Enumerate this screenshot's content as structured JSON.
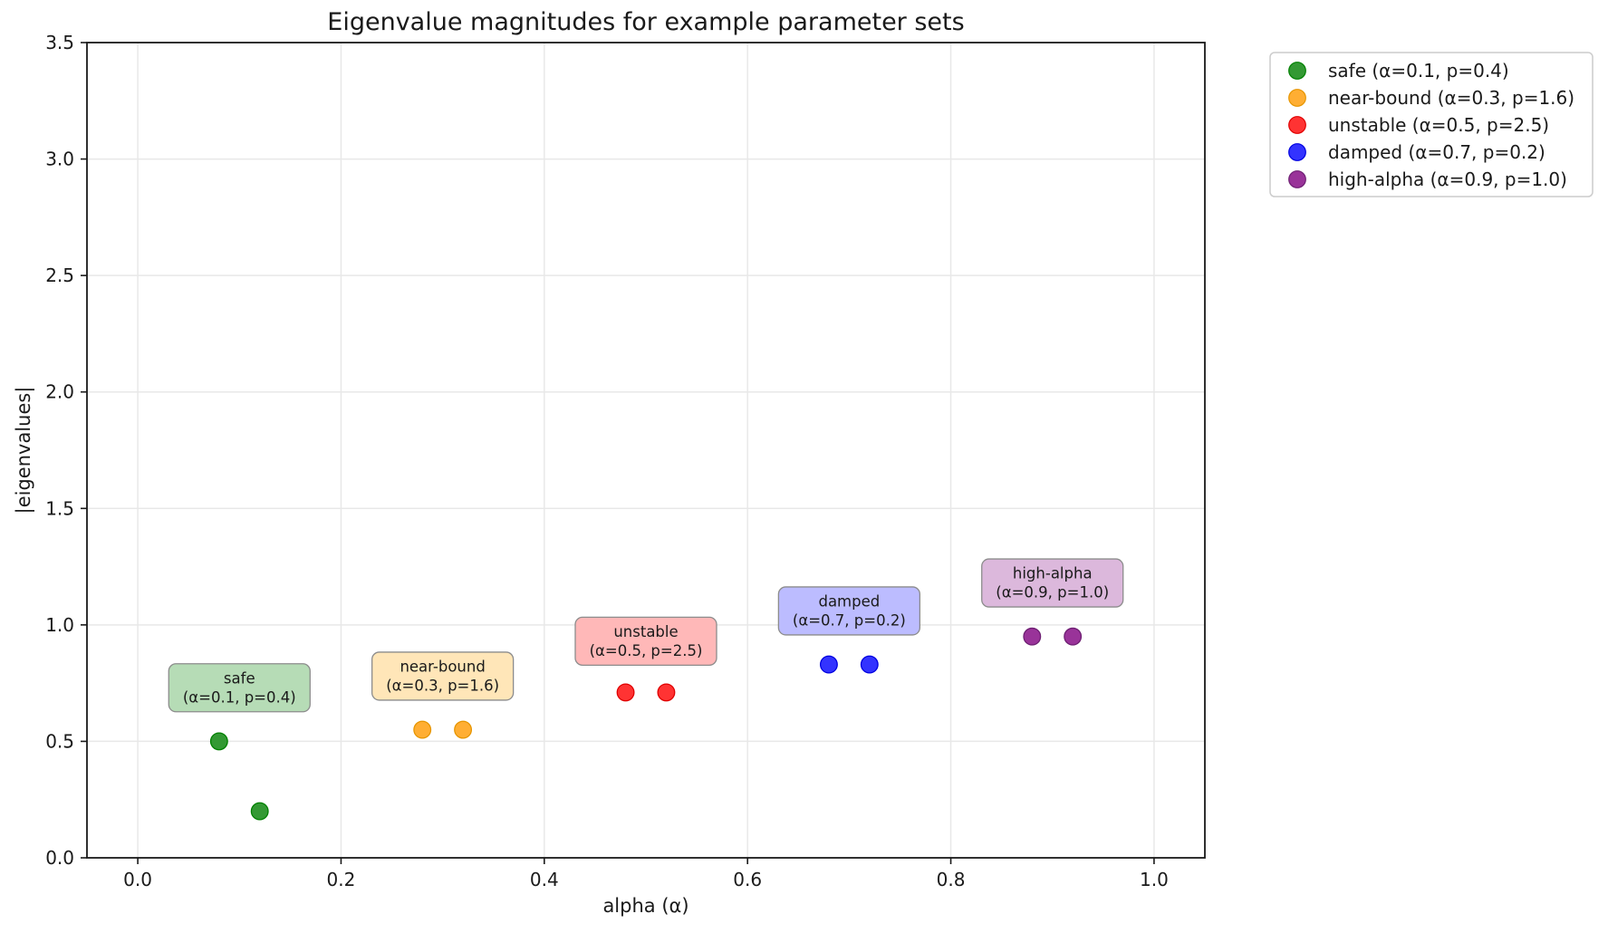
{
  "chart_data": {
    "type": "scatter",
    "title": "Eigenvalue magnitudes for example parameter sets",
    "xlabel": "alpha (α)",
    "ylabel": "|eigenvalues|",
    "xlim": [
      -0.05,
      1.05
    ],
    "ylim": [
      0.0,
      3.5
    ],
    "xticks": [
      "0.0",
      "0.2",
      "0.4",
      "0.6",
      "0.8",
      "1.0"
    ],
    "yticks": [
      "0.0",
      "0.5",
      "1.0",
      "1.5",
      "2.0",
      "2.5",
      "3.0",
      "3.5"
    ],
    "grid": true,
    "grid_color": "#e8e8e8",
    "axis_color": "#1a1a1a",
    "background": "#ffffff",
    "annotation_border": "#8c8c8c",
    "legend_position": "outside upper right",
    "legend_border": "#cccccc",
    "series": [
      {
        "name": "safe",
        "legend_label": "safe (α=0.1, p=0.4)",
        "alpha": 0.1,
        "p": 0.4,
        "marker_fill": "#339933",
        "marker_edge": "#008000",
        "annotation_fill": "#b6dcb6",
        "points": [
          [
            0.08,
            0.5
          ],
          [
            0.12,
            0.2
          ]
        ],
        "annotation": {
          "line1": "safe",
          "line2": "(α=0.1, p=0.4)",
          "x": 0.1,
          "y": 0.73
        }
      },
      {
        "name": "near-bound",
        "legend_label": "near-bound (α=0.3, p=1.6)",
        "alpha": 0.3,
        "p": 1.6,
        "marker_fill": "#ffae33",
        "marker_edge": "#e69500",
        "annotation_fill": "#ffe6b8",
        "points": [
          [
            0.28,
            0.55
          ],
          [
            0.32,
            0.55
          ]
        ],
        "annotation": {
          "line1": "near-bound",
          "line2": "(α=0.3, p=1.6)",
          "x": 0.3,
          "y": 0.78
        }
      },
      {
        "name": "unstable",
        "legend_label": "unstable (α=0.5, p=2.5)",
        "alpha": 0.5,
        "p": 2.5,
        "marker_fill": "#ff3333",
        "marker_edge": "#e00000",
        "annotation_fill": "#ffb8b8",
        "points": [
          [
            0.48,
            0.71
          ],
          [
            0.52,
            0.71
          ]
        ],
        "annotation": {
          "line1": "unstable",
          "line2": "(α=0.5, p=2.5)",
          "x": 0.5,
          "y": 0.93
        }
      },
      {
        "name": "damped",
        "legend_label": "damped (α=0.7, p=0.2)",
        "alpha": 0.7,
        "p": 0.2,
        "marker_fill": "#3333ff",
        "marker_edge": "#0000e0",
        "annotation_fill": "#bcbcff",
        "points": [
          [
            0.68,
            0.83
          ],
          [
            0.72,
            0.83
          ]
        ],
        "annotation": {
          "line1": "damped",
          "line2": "(α=0.7, p=0.2)",
          "x": 0.7,
          "y": 1.06
        }
      },
      {
        "name": "high-alpha",
        "legend_label": "high-alpha (α=0.9, p=1.0)",
        "alpha": 0.9,
        "p": 1.0,
        "marker_fill": "#993399",
        "marker_edge": "#6e1f73",
        "annotation_fill": "#dcb8dc",
        "points": [
          [
            0.88,
            0.95
          ],
          [
            0.92,
            0.95
          ]
        ],
        "annotation": {
          "line1": "high-alpha",
          "line2": "(α=0.9, p=1.0)",
          "x": 0.9,
          "y": 1.18
        }
      }
    ]
  }
}
